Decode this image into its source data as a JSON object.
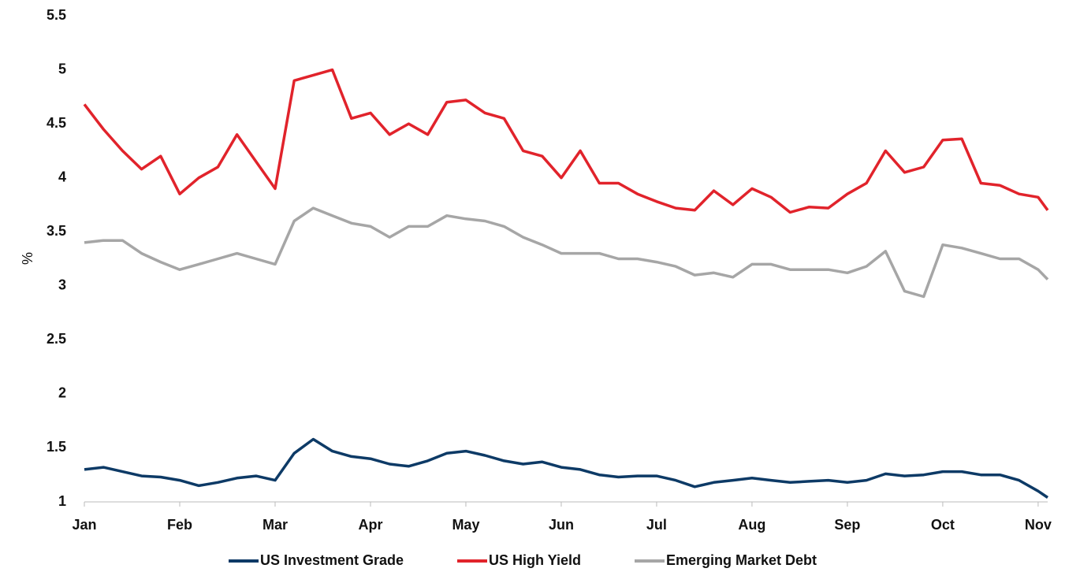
{
  "chart_data": {
    "type": "line",
    "y_label": "%",
    "x": [
      0,
      0.2,
      0.4,
      0.6,
      0.8,
      1.0,
      1.2,
      1.4,
      1.6,
      1.8,
      2.0,
      2.2,
      2.4,
      2.6,
      2.8,
      3.0,
      3.2,
      3.4,
      3.6,
      3.8,
      4.0,
      4.2,
      4.4,
      4.6,
      4.8,
      5.0,
      5.2,
      5.4,
      5.6,
      5.8,
      6.0,
      6.2,
      6.4,
      6.6,
      6.8,
      7.0,
      7.2,
      7.4,
      7.6,
      7.8,
      8.0,
      8.2,
      8.4,
      8.6,
      8.8,
      9.0,
      9.2,
      9.4,
      9.6,
      9.8,
      10.0,
      10.1
    ],
    "xlim": [
      0,
      10.1
    ],
    "xticks": [
      {
        "value": 0,
        "label": "Jan"
      },
      {
        "value": 1,
        "label": "Feb"
      },
      {
        "value": 2,
        "label": "Mar"
      },
      {
        "value": 3,
        "label": "Apr"
      },
      {
        "value": 4,
        "label": "May"
      },
      {
        "value": 5,
        "label": "Jun"
      },
      {
        "value": 6,
        "label": "Jul"
      },
      {
        "value": 7,
        "label": "Aug"
      },
      {
        "value": 8,
        "label": "Sep"
      },
      {
        "value": 9,
        "label": "Oct"
      },
      {
        "value": 10,
        "label": "Nov"
      }
    ],
    "ylim": [
      1,
      5.5
    ],
    "yticks": [
      1,
      1.5,
      2,
      2.5,
      3,
      3.5,
      4,
      4.5,
      5,
      5.5
    ],
    "grid": false,
    "legend": "bottom",
    "series": [
      {
        "name": "US Investment Grade",
        "color": "#0d3a66",
        "values": [
          1.3,
          1.32,
          1.28,
          1.24,
          1.23,
          1.2,
          1.15,
          1.18,
          1.22,
          1.24,
          1.2,
          1.45,
          1.58,
          1.47,
          1.42,
          1.4,
          1.35,
          1.33,
          1.38,
          1.45,
          1.47,
          1.43,
          1.38,
          1.35,
          1.37,
          1.32,
          1.3,
          1.25,
          1.23,
          1.24,
          1.24,
          1.2,
          1.14,
          1.18,
          1.2,
          1.22,
          1.2,
          1.18,
          1.19,
          1.2,
          1.18,
          1.2,
          1.26,
          1.24,
          1.25,
          1.28,
          1.28,
          1.25,
          1.25,
          1.2,
          1.1,
          1.04
        ]
      },
      {
        "name": "US High Yield",
        "color": "#e1232b",
        "values": [
          4.68,
          4.45,
          4.25,
          4.08,
          4.2,
          3.85,
          4.0,
          4.1,
          4.4,
          4.15,
          3.9,
          4.9,
          4.95,
          5.0,
          4.55,
          4.6,
          4.4,
          4.5,
          4.4,
          4.7,
          4.72,
          4.6,
          4.55,
          4.25,
          4.2,
          4.0,
          4.25,
          3.95,
          3.95,
          3.85,
          3.78,
          3.72,
          3.7,
          3.88,
          3.75,
          3.9,
          3.82,
          3.68,
          3.73,
          3.72,
          3.85,
          3.95,
          4.25,
          4.05,
          4.1,
          4.35,
          4.36,
          3.95,
          3.93,
          3.85,
          3.82,
          3.7
        ]
      },
      {
        "name": "Emerging Market Debt",
        "color": "#a6a6a6",
        "values": [
          3.4,
          3.42,
          3.42,
          3.3,
          3.22,
          3.15,
          3.2,
          3.25,
          3.3,
          3.25,
          3.2,
          3.6,
          3.72,
          3.65,
          3.58,
          3.55,
          3.45,
          3.55,
          3.55,
          3.65,
          3.62,
          3.6,
          3.55,
          3.45,
          3.38,
          3.3,
          3.3,
          3.3,
          3.25,
          3.25,
          3.22,
          3.18,
          3.1,
          3.12,
          3.08,
          3.2,
          3.2,
          3.15,
          3.15,
          3.15,
          3.12,
          3.18,
          3.32,
          2.95,
          2.9,
          3.38,
          3.35,
          3.3,
          3.25,
          3.25,
          3.15,
          3.06
        ]
      }
    ]
  }
}
